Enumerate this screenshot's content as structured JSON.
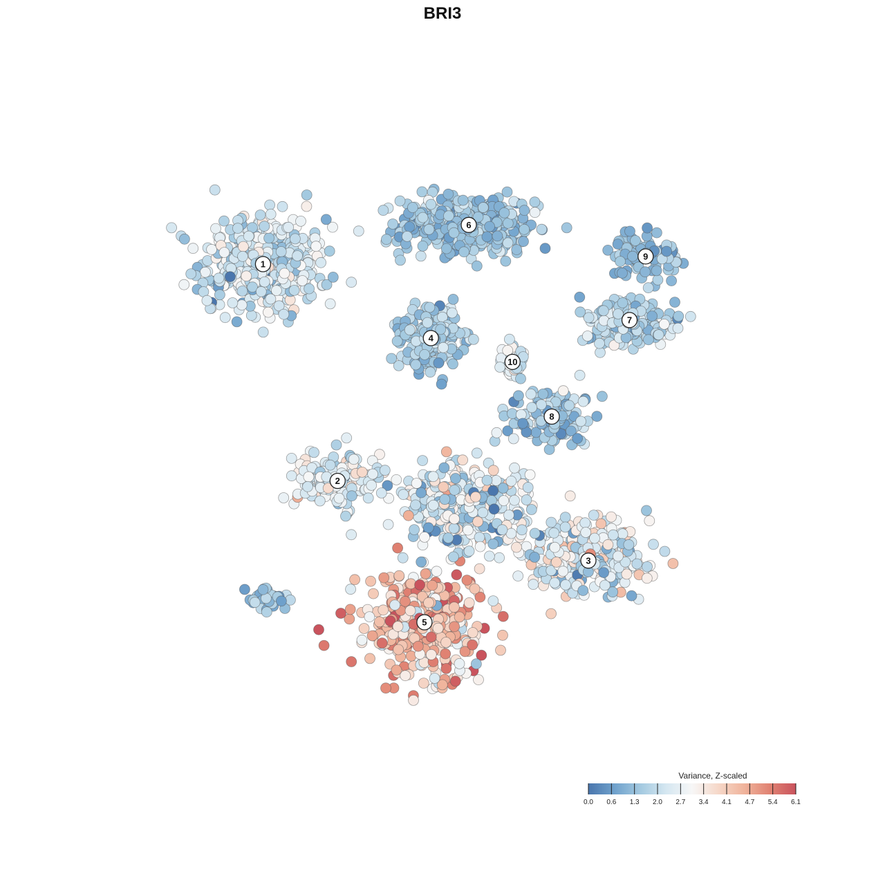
{
  "chart_data": {
    "type": "scatter",
    "title": "BRI3",
    "xlabel": "",
    "ylabel": "",
    "grid": false,
    "axes": "none",
    "legend": {
      "title": "Variance, Z-scaled",
      "placement": "bottom-right",
      "ticks": [
        "0.0",
        "0.6",
        "1.3",
        "2.0",
        "2.7",
        "3.4",
        "4.1",
        "4.7",
        "5.4",
        "6.1"
      ],
      "range": [
        0.0,
        6.1
      ],
      "colors": [
        "#4a76ad",
        "#6fa1cc",
        "#a3c9e0",
        "#d5e7f1",
        "#f7f7f7",
        "#f6d8c9",
        "#f0b49c",
        "#e08272",
        "#c9535d"
      ]
    },
    "x_range": [
      -50,
      50
    ],
    "y_range": [
      -50,
      50
    ],
    "clusters": [
      {
        "label": "1",
        "x": -30.6,
        "y": 27.2,
        "sx": 9.0,
        "sy": 7.0,
        "n": 420,
        "mean": 2.2,
        "sd": 0.6
      },
      {
        "label": "6",
        "x": 1.4,
        "y": 33.3,
        "sx": 9.5,
        "sy": 4.2,
        "n": 420,
        "mean": 1.5,
        "sd": 0.4
      },
      {
        "label": "4",
        "x": -4.5,
        "y": 15.7,
        "sx": 4.2,
        "sy": 4.4,
        "n": 230,
        "mean": 1.7,
        "sd": 0.5
      },
      {
        "label": "10",
        "x": 8.2,
        "y": 12.0,
        "sx": 1.8,
        "sy": 2.5,
        "n": 40,
        "mean": 2.3,
        "sd": 0.5
      },
      {
        "label": "9",
        "x": 28.9,
        "y": 28.4,
        "sx": 5.0,
        "sy": 2.8,
        "n": 90,
        "mean": 1.3,
        "sd": 0.4
      },
      {
        "label": "7",
        "x": 26.4,
        "y": 18.5,
        "sx": 7.0,
        "sy": 3.5,
        "n": 180,
        "mean": 1.8,
        "sd": 0.5
      },
      {
        "label": "8",
        "x": 14.3,
        "y": 3.5,
        "sx": 6.0,
        "sy": 4.0,
        "n": 150,
        "mean": 1.6,
        "sd": 0.6
      },
      {
        "label": "2",
        "x": -19.0,
        "y": -6.5,
        "sx": 6.0,
        "sy": 4.0,
        "n": 170,
        "mean": 2.5,
        "sd": 0.6
      },
      {
        "label": "3",
        "x": 20.0,
        "y": -18.9,
        "sx": 9.0,
        "sy": 5.0,
        "n": 300,
        "mean": 2.5,
        "sd": 0.9
      },
      {
        "label": "5",
        "x": -5.5,
        "y": -28.5,
        "sx": 8.5,
        "sy": 7.0,
        "n": 380,
        "mean": 4.2,
        "sd": 1.0
      },
      {
        "label": "",
        "x": 1.0,
        "y": -10.0,
        "sx": 9.0,
        "sy": 6.0,
        "n": 320,
        "mean": 2.2,
        "sd": 0.9
      },
      {
        "label": "",
        "x": -30.0,
        "y": -25.0,
        "sx": 3.5,
        "sy": 2.0,
        "n": 35,
        "mean": 1.4,
        "sd": 0.5
      }
    ]
  }
}
